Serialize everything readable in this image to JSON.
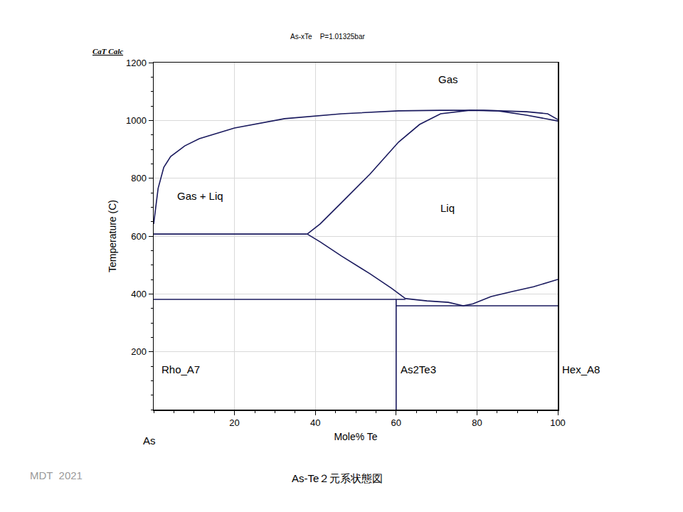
{
  "chart_data": {
    "type": "line",
    "title": "As-xTe    P=1.01325bar",
    "logo": "CaT Calc",
    "credit": "MDT  2021",
    "caption": "As-Te２元系状態図",
    "x_label": "Mole% Te",
    "y_label": "Temperature (C)",
    "xlim": [
      0,
      100
    ],
    "xticks": [
      20,
      40,
      60,
      80,
      100
    ],
    "ylim": [
      0,
      1200
    ],
    "yticks": [
      200,
      400,
      600,
      800,
      1000,
      1200
    ],
    "grid": true,
    "color": "#1a1a5e",
    "line_style": "solid",
    "series": [
      {
        "x": [
          0,
          1.1,
          2.5,
          4.2,
          7.7,
          11.3,
          20,
          32.4,
          46.5,
          60.6,
          71,
          81.7,
          92.3,
          97.5,
          100
        ],
        "values": [
          642,
          765,
          838,
          875,
          912,
          937,
          974,
          1006,
          1023,
          1033,
          1035,
          1035,
          1030,
          1023,
          1003
        ]
      },
      {
        "x": [
          38,
          41.2,
          46.5,
          53.5,
          60.6,
          65.8,
          71,
          78.2,
          85.2,
          92.3,
          100
        ],
        "values": [
          607,
          642,
          716,
          814,
          925,
          986,
          1023,
          1035,
          1033,
          1018,
          998
        ]
      },
      {
        "x": [
          0,
          38
        ],
        "values": [
          607,
          607
        ]
      },
      {
        "x": [
          38,
          41.2,
          46.5,
          53.5,
          58.8,
          62.3
        ],
        "values": [
          607,
          580,
          531,
          470,
          420,
          384
        ]
      },
      {
        "x": [
          62.3,
          67.6,
          72.9,
          76.6,
          79,
          83.5,
          88.7,
          94,
          100
        ],
        "values": [
          384,
          376,
          371,
          359,
          366,
          391,
          408,
          425,
          450
        ]
      },
      {
        "x": [
          0,
          62.3
        ],
        "values": [
          381,
          381
        ]
      },
      {
        "x": [
          60,
          60
        ],
        "values": [
          0,
          381
        ]
      },
      {
        "x": [
          60,
          100
        ],
        "values": [
          359,
          359
        ]
      }
    ],
    "labels": [
      {
        "text": "Gas",
        "x": 72.9,
        "y": 1141
      },
      {
        "text": "Gas + Liq",
        "x": 11.6,
        "y": 740
      },
      {
        "text": "Liq",
        "x": 72.7,
        "y": 696
      },
      {
        "text": "Rho_A7",
        "x": 6.7,
        "y": 140
      },
      {
        "text": "As2Te3",
        "x": 65.5,
        "y": 140
      },
      {
        "text": "Hex_A8",
        "x": 105.8,
        "y": 140
      },
      {
        "text": "As",
        "x": -1,
        "y": -108
      }
    ]
  }
}
